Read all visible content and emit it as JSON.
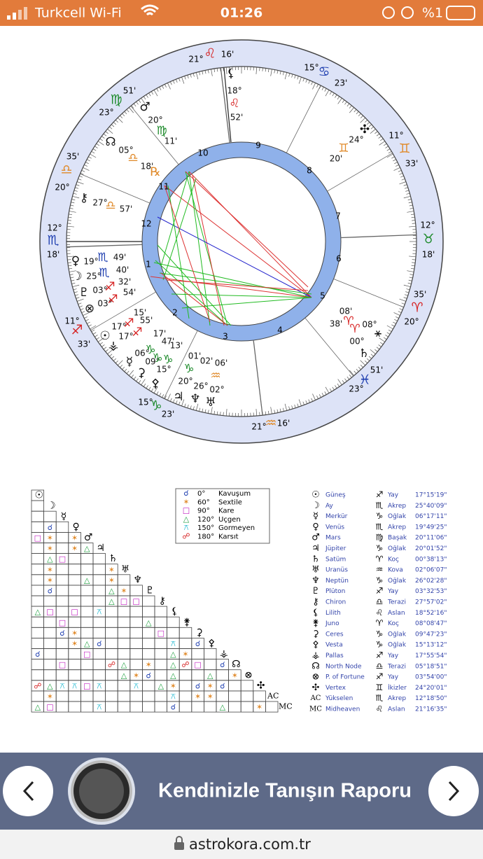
{
  "status_bar": {
    "carrier": "Turkcell Wi-Fi",
    "time": "01:26",
    "battery": "%1"
  },
  "wheel": {
    "cusps": [
      {
        "degree": "21°",
        "sign": "♌",
        "minute": "16'",
        "color": "#d62020"
      },
      {
        "degree": "15°",
        "sign": "♋",
        "minute": "23'",
        "color": "#1f3fb0"
      },
      {
        "degree": "11°",
        "sign": "♊",
        "minute": "33'",
        "color": "#e08a2a"
      },
      {
        "degree": "12°",
        "sign": "♉",
        "minute": "18'",
        "color": "#1c8a2a"
      },
      {
        "degree": "20°",
        "sign": "♈",
        "minute": "35'",
        "color": "#d62020"
      },
      {
        "degree": "23°",
        "sign": "♓",
        "minute": "51'",
        "color": "#1f3fb0"
      },
      {
        "degree": "21°",
        "sign": "♒",
        "minute": "16'",
        "color": "#e08a2a"
      },
      {
        "degree": "15°",
        "sign": "♑",
        "minute": "23'",
        "color": "#1c8a2a"
      },
      {
        "degree": "11°",
        "sign": "♐",
        "minute": "33'",
        "color": "#d62020"
      },
      {
        "degree": "12°",
        "sign": "♏",
        "minute": "18'",
        "color": "#1f3fb0"
      },
      {
        "degree": "20°",
        "sign": "♎",
        "minute": "35'",
        "color": "#e08a2a"
      },
      {
        "degree": "23°",
        "sign": "♍",
        "minute": "51'",
        "color": "#1c8a2a"
      }
    ],
    "house_numbers": [
      "1",
      "2",
      "3",
      "4",
      "5",
      "6",
      "7",
      "8",
      "9",
      "10",
      "11",
      "12"
    ],
    "labels": [
      {
        "text": "⚸",
        "color": "#111"
      },
      {
        "text": "18°",
        "color": "#111"
      },
      {
        "text": "♌",
        "color": "#d62020"
      },
      {
        "text": "52'",
        "color": "#111"
      },
      {
        "text": "♂",
        "color": "#111"
      },
      {
        "text": "20°",
        "color": "#111"
      },
      {
        "text": "♍",
        "color": "#1c8a2a"
      },
      {
        "text": "11'",
        "color": "#111"
      },
      {
        "text": "☊",
        "color": "#111"
      },
      {
        "text": "05°",
        "color": "#111"
      },
      {
        "text": "♎",
        "color": "#e08a2a"
      },
      {
        "text": "18'",
        "color": "#111"
      },
      {
        "text": "℞",
        "color": "#e08a2a"
      },
      {
        "text": "⚷",
        "color": "#111"
      },
      {
        "text": "27°",
        "color": "#111"
      },
      {
        "text": "♎",
        "color": "#e08a2a"
      },
      {
        "text": "57'",
        "color": "#111"
      },
      {
        "text": "♀",
        "color": "#111"
      },
      {
        "text": "19°",
        "color": "#111"
      },
      {
        "text": "♏",
        "color": "#1f3fb0"
      },
      {
        "text": "49'",
        "color": "#111"
      },
      {
        "text": "☽",
        "color": "#111"
      },
      {
        "text": "25°",
        "color": "#111"
      },
      {
        "text": "♏",
        "color": "#1f3fb0"
      },
      {
        "text": "40'",
        "color": "#111"
      },
      {
        "text": "♇",
        "color": "#111"
      },
      {
        "text": "03°",
        "color": "#111"
      },
      {
        "text": "♐",
        "color": "#d62020"
      },
      {
        "text": "32'",
        "color": "#111"
      },
      {
        "text": "⊗",
        "color": "#111"
      },
      {
        "text": "03°",
        "color": "#111"
      },
      {
        "text": "♐",
        "color": "#d62020"
      },
      {
        "text": "54'",
        "color": "#111"
      },
      {
        "text": "15'",
        "color": "#111"
      },
      {
        "text": "55'",
        "color": "#111"
      },
      {
        "text": "☉",
        "color": "#111"
      },
      {
        "text": "17°",
        "color": "#111"
      },
      {
        "text": "♐",
        "color": "#d62020"
      },
      {
        "text": "⚶",
        "color": "#111"
      },
      {
        "text": "17°",
        "color": "#111"
      },
      {
        "text": "♐",
        "color": "#d62020"
      },
      {
        "text": "17'",
        "color": "#111"
      },
      {
        "text": "47'",
        "color": "#111"
      },
      {
        "text": "13'",
        "color": "#111"
      },
      {
        "text": "☿",
        "color": "#111"
      },
      {
        "text": "06°",
        "color": "#111"
      },
      {
        "text": "♑",
        "color": "#1c8a2a"
      },
      {
        "text": "⚳",
        "color": "#111"
      },
      {
        "text": "09°",
        "color": "#111"
      },
      {
        "text": "♑",
        "color": "#1c8a2a"
      },
      {
        "text": "⚴",
        "color": "#111"
      },
      {
        "text": "15°",
        "color": "#111"
      },
      {
        "text": "♑",
        "color": "#1c8a2a"
      },
      {
        "text": "20°",
        "color": "#111"
      },
      {
        "text": "♑",
        "color": "#1c8a2a"
      },
      {
        "text": "01'",
        "color": "#111"
      },
      {
        "text": "02'",
        "color": "#111"
      },
      {
        "text": "06'",
        "color": "#111"
      },
      {
        "text": "♃",
        "color": "#111"
      },
      {
        "text": "♆",
        "color": "#111"
      },
      {
        "text": "♅",
        "color": "#111"
      },
      {
        "text": "26°",
        "color": "#111"
      },
      {
        "text": "02°",
        "color": "#111"
      },
      {
        "text": "♒",
        "color": "#e08a2a"
      },
      {
        "text": "✣",
        "color": "#111"
      },
      {
        "text": "24°",
        "color": "#111"
      },
      {
        "text": "♊",
        "color": "#e08a2a"
      },
      {
        "text": "20'",
        "color": "#111"
      },
      {
        "text": "08'",
        "color": "#111"
      },
      {
        "text": "♈",
        "color": "#d62020"
      },
      {
        "text": "38'",
        "color": "#111"
      },
      {
        "text": "♈",
        "color": "#d62020"
      },
      {
        "text": "08°",
        "color": "#111"
      },
      {
        "text": "⚹",
        "color": "#111"
      },
      {
        "text": "00°",
        "color": "#111"
      },
      {
        "text": "♄",
        "color": "#111"
      }
    ]
  },
  "legend": [
    {
      "symbol": "☌",
      "angle": "0°",
      "name": "Kavuşum",
      "color": "#1f3fb0"
    },
    {
      "symbol": "✶",
      "angle": "60°",
      "name": "Sextile",
      "color": "#e08a2a"
    },
    {
      "symbol": "□",
      "angle": "90°",
      "name": "Kare",
      "color": "#c020c0"
    },
    {
      "symbol": "△",
      "angle": "120°",
      "name": "Uçgen",
      "color": "#20a040"
    },
    {
      "symbol": "⚻",
      "angle": "150°",
      "name": "Gormeyen",
      "color": "#20b8d0"
    },
    {
      "symbol": "☍",
      "angle": "180°",
      "name": "Karsıt",
      "color": "#d62020"
    }
  ],
  "grid": {
    "headers": [
      "☉",
      "☽",
      "☿",
      "♀",
      "♂",
      "♃",
      "♄",
      "♅",
      "♆",
      "♇",
      "⚷",
      "⚸",
      "⚵",
      "⚳",
      "⚴",
      "⚶",
      "☊",
      "⊗",
      "✣",
      "AC",
      "MC"
    ],
    "rows": [
      [],
      [
        null
      ],
      [
        null,
        null
      ],
      [
        null,
        "☌",
        null
      ],
      [
        "□",
        "✶",
        null,
        "✶"
      ],
      [
        null,
        "✶",
        null,
        "✶",
        "△"
      ],
      [
        null,
        "△",
        "□",
        null,
        null,
        null
      ],
      [
        null,
        "✶",
        null,
        null,
        null,
        null,
        "✶"
      ],
      [
        null,
        "✶",
        null,
        null,
        "△",
        null,
        "✶",
        null
      ],
      [
        null,
        "☌",
        null,
        null,
        null,
        null,
        "△",
        "✶",
        null
      ],
      [
        null,
        null,
        null,
        null,
        null,
        null,
        "△",
        "□",
        "□",
        null
      ],
      [
        "△",
        "□",
        null,
        "□",
        null,
        "⚻",
        null,
        null,
        null,
        null,
        null
      ],
      [
        null,
        null,
        "□",
        null,
        null,
        null,
        null,
        null,
        null,
        "△",
        null,
        null
      ],
      [
        null,
        null,
        "☌",
        "✶",
        null,
        null,
        null,
        null,
        null,
        null,
        "□",
        null,
        null
      ],
      [
        null,
        null,
        null,
        "✶",
        "△",
        "☌",
        null,
        null,
        null,
        null,
        null,
        "⚻",
        null,
        "☌"
      ],
      [
        "☌",
        null,
        null,
        null,
        "□",
        null,
        null,
        null,
        null,
        null,
        null,
        "△",
        "✶",
        null,
        null
      ],
      [
        null,
        null,
        "□",
        null,
        null,
        null,
        "☍",
        "△",
        null,
        "✶",
        null,
        "△",
        "☍",
        "□",
        null,
        "☌"
      ],
      [
        null,
        null,
        null,
        null,
        null,
        null,
        null,
        "△",
        "✶",
        "☌",
        null,
        "△",
        null,
        null,
        "△",
        null,
        "✶"
      ],
      [
        "☍",
        "△",
        "⚻",
        "⚻",
        "□",
        "⚻",
        null,
        null,
        "⚻",
        null,
        "△",
        "✶",
        null,
        "☌",
        "✶",
        "☌",
        null,
        null
      ],
      [
        null,
        "✶",
        null,
        null,
        null,
        null,
        null,
        null,
        null,
        null,
        null,
        "⚻",
        null,
        "✶",
        "✶",
        null,
        null,
        null,
        null
      ],
      [
        "△",
        "□",
        null,
        null,
        null,
        "⚻",
        null,
        null,
        null,
        null,
        null,
        "☌",
        null,
        null,
        null,
        "△",
        null,
        null,
        "✶",
        null
      ]
    ]
  },
  "planets": [
    [
      "☉",
      "Güneş",
      "♐",
      "Yay",
      "17°15'19\""
    ],
    [
      "☽",
      "Ay",
      "♏",
      "Akrep",
      "25°40'09\""
    ],
    [
      "☿",
      "Merkür",
      "♑",
      "Oğlak",
      "06°17'11\""
    ],
    [
      "♀",
      "Venüs",
      "♏",
      "Akrep",
      "19°49'25\""
    ],
    [
      "♂",
      "Mars",
      "♍",
      "Başak",
      "20°11'06\""
    ],
    [
      "♃",
      "Jüpiter",
      "♑",
      "Oğlak",
      "20°01'52\""
    ],
    [
      "♄",
      "Satüm",
      "♈",
      "Koç",
      "00°38'13\""
    ],
    [
      "♅",
      "Uranüs",
      "♒",
      "Kova",
      "02°06'07\""
    ],
    [
      "♆",
      "Neptün",
      "♑",
      "Oğlak",
      "26°02'28\""
    ],
    [
      "♇",
      "Plüton",
      "♐",
      "Yay",
      "03°32'53\""
    ],
    [
      "⚷",
      "Chiron",
      "♎",
      "Terazi",
      "27°57'02\""
    ],
    [
      "⚸",
      "Lilith",
      "♌",
      "Aslan",
      "18°52'16\""
    ],
    [
      "⚵",
      "Juno",
      "♈",
      "Koç",
      "08°08'47\""
    ],
    [
      "⚳",
      "Ceres",
      "♑",
      "Oğlak",
      "09°47'23\""
    ],
    [
      "⚴",
      "Vesta",
      "♑",
      "Oğlak",
      "15°13'12\""
    ],
    [
      "⚶",
      "Pallas",
      "♐",
      "Yay",
      "17°55'54\""
    ],
    [
      "☊",
      "North Node",
      "♎",
      "Terazi",
      "05°18'51\""
    ],
    [
      "⊗",
      "P. of Fortune",
      "♐",
      "Yay",
      "03°54'00\""
    ],
    [
      "✣",
      "Vertex",
      "♊",
      "İkizler",
      "24°20'01\""
    ],
    [
      "AC",
      "Yükselen",
      "♏",
      "Akrep",
      "12°18'50\""
    ],
    [
      "MC",
      "Midheaven",
      "♌",
      "Aslan",
      "21°16'35\""
    ]
  ],
  "banner": {
    "title": "Kendinizle Tanışın Raporu"
  },
  "url_bar": {
    "url": "astrokora.com.tr"
  }
}
